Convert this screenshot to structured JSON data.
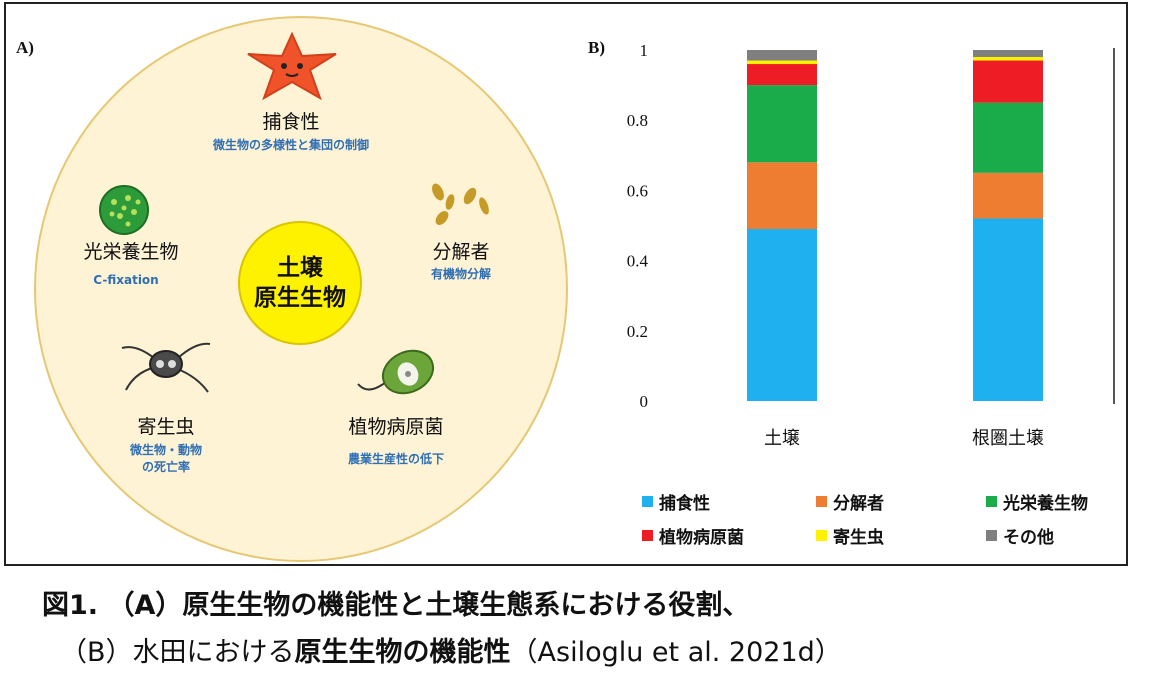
{
  "panel_a": {
    "label": "A)",
    "center": {
      "line1": "土壌",
      "line2": "原生生物"
    },
    "roles": [
      {
        "name": "捕食性",
        "desc": "微生物の多様性と集団の制御"
      },
      {
        "name": "光栄養生物",
        "desc": "C-fixation"
      },
      {
        "name": "分解者",
        "desc": "有機物分解"
      },
      {
        "name": "寄生虫",
        "desc1": "微生物・動物",
        "desc2": "の死亡率"
      },
      {
        "name": "植物病原菌",
        "desc": "農業生産性の低下"
      }
    ],
    "icons": [
      "starfish-icon",
      "green-cell-icon",
      "decomposer-icon",
      "parasite-icon",
      "pathogen-icon"
    ]
  },
  "panel_b": {
    "label": "B)"
  },
  "chart_data": {
    "type": "bar",
    "stacked": true,
    "categories": [
      "土壌",
      "根圏土壌"
    ],
    "series": [
      {
        "name": "捕食性",
        "color": "#1fb0ef",
        "values": [
          0.49,
          0.52
        ]
      },
      {
        "name": "分解者",
        "color": "#ee7d31",
        "values": [
          0.19,
          0.13
        ]
      },
      {
        "name": "光栄養生物",
        "color": "#1aab4a",
        "values": [
          0.22,
          0.2
        ]
      },
      {
        "name": "植物病原菌",
        "color": "#ee1c24",
        "values": [
          0.06,
          0.12
        ]
      },
      {
        "name": "寄生虫",
        "color": "#fff200",
        "values": [
          0.01,
          0.01
        ]
      },
      {
        "name": "その他",
        "color": "#7f7f7f",
        "values": [
          0.03,
          0.02
        ]
      }
    ],
    "yticks": [
      "0",
      "0.2",
      "0.4",
      "0.6",
      "0.8",
      "1"
    ],
    "ylim": [
      0,
      1
    ]
  },
  "caption": {
    "line1": "図1. （A）原生生物の機能性と土壌生態系における役割、",
    "line2_a": "（B）水田における",
    "line2_b": "原生生物の機能性",
    "line2_c": "（Asiloglu et al. 2021d）"
  }
}
